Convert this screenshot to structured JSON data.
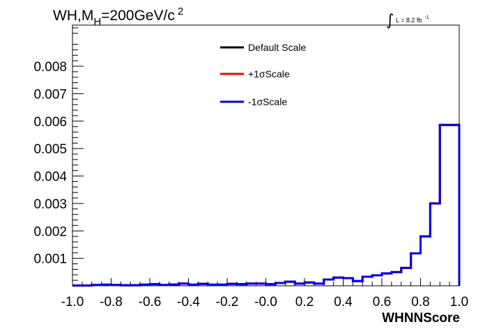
{
  "chart_data": {
    "type": "line",
    "title": {
      "prefix": "WH,M",
      "subscript": "H",
      "main": "=200GeV/c",
      "superscript": "2"
    },
    "luminosity": {
      "integral": "∫",
      "text": "L = 8.2 fb",
      "superscript": "-1"
    },
    "xlabel": "WHNNScore",
    "ylabel": "",
    "xlim": [
      -1.0,
      1.0
    ],
    "ylim": [
      0,
      0.0095
    ],
    "x_ticks": [
      "-1.0",
      "-0.8",
      "-0.6",
      "-0.4",
      "-0.2",
      "-0.0",
      "0.2",
      "0.4",
      "0.6",
      "0.8",
      "1.0"
    ],
    "y_ticks": [
      "0.001",
      "0.002",
      "0.003",
      "0.004",
      "0.005",
      "0.006",
      "0.007",
      "0.008"
    ],
    "legend_position": "top-center",
    "bin_edges": [
      -1.0,
      -0.95,
      -0.9,
      -0.85,
      -0.8,
      -0.75,
      -0.7,
      -0.65,
      -0.6,
      -0.55,
      -0.5,
      -0.45,
      -0.4,
      -0.35,
      -0.3,
      -0.25,
      -0.2,
      -0.15,
      -0.1,
      -0.05,
      0.0,
      0.05,
      0.1,
      0.15,
      0.2,
      0.25,
      0.3,
      0.35,
      0.4,
      0.45,
      0.5,
      0.55,
      0.6,
      0.65,
      0.7,
      0.75,
      0.8,
      0.85,
      0.9,
      0.95,
      1.0
    ],
    "series": [
      {
        "name": "Default Scale",
        "color": "#000000",
        "values": [
          1e-05,
          1e-05,
          3e-05,
          4e-05,
          3e-05,
          2e-05,
          2e-05,
          4e-05,
          6e-05,
          3e-05,
          5e-05,
          8e-05,
          4e-05,
          7e-05,
          4e-05,
          4e-05,
          7e-05,
          6e-05,
          8e-05,
          8e-05,
          6e-05,
          0.0001,
          0.00015,
          8e-05,
          0.00012,
          8e-05,
          0.00023,
          0.0003,
          0.00028,
          0.00017,
          0.00033,
          0.00038,
          0.00045,
          0.0005,
          0.00065,
          0.00118,
          0.0018,
          0.003,
          0.00586,
          0.00586
        ]
      },
      {
        "name": "+1σScale",
        "color": "#ff0000",
        "values": [
          1e-05,
          1e-05,
          3e-05,
          4e-05,
          3e-05,
          2e-05,
          2e-05,
          4e-05,
          6e-05,
          3e-05,
          5e-05,
          8e-05,
          4e-05,
          7e-05,
          4e-05,
          4e-05,
          7e-05,
          6e-05,
          8e-05,
          8e-05,
          6e-05,
          0.0001,
          0.00015,
          8e-05,
          0.00012,
          8e-05,
          0.00023,
          0.0003,
          0.00028,
          0.00017,
          0.00033,
          0.00038,
          0.00045,
          0.0005,
          0.00065,
          0.00118,
          0.0018,
          0.003,
          0.00586,
          0.00586
        ]
      },
      {
        "name": "-1σScale",
        "color": "#0000ee",
        "values": [
          1e-05,
          1e-05,
          3e-05,
          4e-05,
          3e-05,
          2e-05,
          2e-05,
          4e-05,
          6e-05,
          3e-05,
          5e-05,
          8e-05,
          4e-05,
          7e-05,
          4e-05,
          4e-05,
          7e-05,
          6e-05,
          8e-05,
          8e-05,
          6e-05,
          0.0001,
          0.00015,
          8e-05,
          0.00012,
          8e-05,
          0.00023,
          0.0003,
          0.00028,
          0.00017,
          0.00033,
          0.00038,
          0.00045,
          0.0005,
          0.00065,
          0.00118,
          0.0018,
          0.003,
          0.00586,
          0.00586
        ]
      }
    ]
  }
}
